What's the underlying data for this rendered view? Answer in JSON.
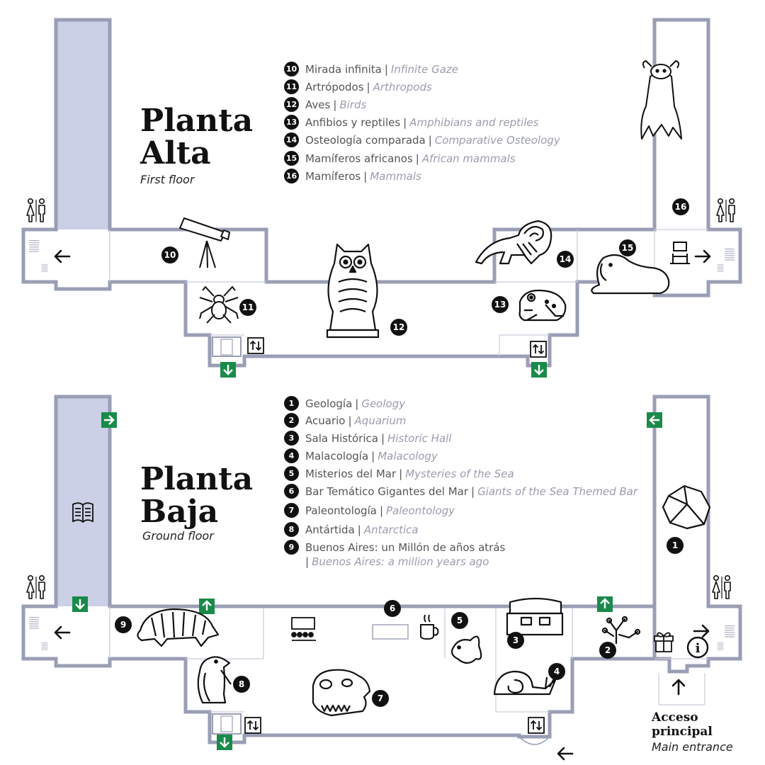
{
  "upper_floor": {
    "title_line1": "Planta",
    "title_line2": "Alta",
    "subtitle": "First floor",
    "legend": [
      {
        "num": "10",
        "es": "Mirada infinita",
        "en": "Infinite Gaze"
      },
      {
        "num": "11",
        "es": "Artrópodos",
        "en": "Arthropods"
      },
      {
        "num": "12",
        "es": "Aves",
        "en": "Birds"
      },
      {
        "num": "13",
        "es": "Anfibios y reptiles",
        "en": "Amphibians and reptiles"
      },
      {
        "num": "14",
        "es": "Osteología comparada",
        "en": "Comparative Osteology"
      },
      {
        "num": "15",
        "es": "Mamíferos africanos",
        "en": "African mammals"
      },
      {
        "num": "16",
        "es": "Mamíferos",
        "en": "Mammals"
      }
    ]
  },
  "ground_floor": {
    "title_line1": "Planta",
    "title_line2": "Baja",
    "subtitle": "Ground floor",
    "legend": [
      {
        "num": "1",
        "es": "Geología",
        "en": "Geology"
      },
      {
        "num": "2",
        "es": "Acuario",
        "en": "Aquarium"
      },
      {
        "num": "3",
        "es": "Sala Histórica",
        "en": "Historic Hall"
      },
      {
        "num": "4",
        "es": "Malacología",
        "en": "Malacology"
      },
      {
        "num": "5",
        "es": "Misterios del Mar",
        "en": "Mysteries of the Sea"
      },
      {
        "num": "6",
        "es": "Bar Temático Gigantes del Mar",
        "en": "Giants of the Sea Themed Bar"
      },
      {
        "num": "7",
        "es": "Paleontología",
        "en": "Paleontology"
      },
      {
        "num": "8",
        "es": "Antártida",
        "en": "Antarctica"
      },
      {
        "num": "9",
        "es": "Buenos Aires: un Millón de años atrás",
        "en": "Buenos Aires: a million years ago"
      }
    ]
  },
  "main_entrance": {
    "title_line1": "Acceso",
    "title_line2": "principal",
    "subtitle": "Main entrance"
  },
  "map_markers": {
    "upper": [
      "10",
      "11",
      "12",
      "13",
      "14",
      "15",
      "16"
    ],
    "ground": [
      "1",
      "2",
      "3",
      "4",
      "5",
      "6",
      "7",
      "8",
      "9"
    ]
  },
  "icons": [
    "restroom-icon",
    "elevator-icon",
    "emergency-exit-icon",
    "telescope-icon",
    "spider-icon",
    "owl-icon",
    "frog-icon",
    "anteater-skeleton-icon",
    "lion-icon",
    "bat-icon",
    "museum-exhibit-icon",
    "book-icon",
    "rock-icon",
    "armadillo-icon",
    "penguin-icon",
    "dinosaur-skull-icon",
    "sunfish-icon",
    "coffee-icon",
    "auditorium-icon",
    "treasure-chest-icon",
    "snail-icon",
    "coral-icon",
    "gift-icon",
    "info-icon",
    "arrow-icon"
  ],
  "colors": {
    "wall": "#9a9eb5",
    "highlight_column": "#cbd0e6",
    "marker": "#111111",
    "exit_sign": "#1a8a4a",
    "english_text": "#9a9cac"
  }
}
